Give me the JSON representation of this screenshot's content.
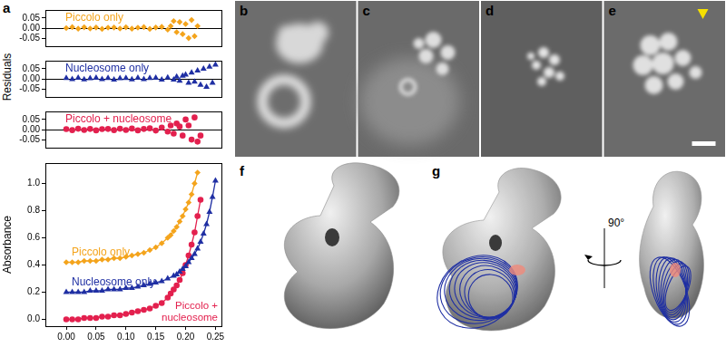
{
  "chart_data": [
    {
      "type": "scatter",
      "series": [
        {
          "name": "Piccolo only",
          "color": "#f4a41c",
          "marker": "diamond",
          "x": [
            0,
            0.01,
            0.02,
            0.03,
            0.04,
            0.05,
            0.06,
            0.07,
            0.08,
            0.09,
            0.1,
            0.11,
            0.12,
            0.13,
            0.14,
            0.15,
            0.16,
            0.17,
            0.175,
            0.18,
            0.185,
            0.19,
            0.195,
            0.2,
            0.205,
            0.21,
            0.215,
            0.22
          ],
          "values": [
            0,
            0.005,
            -0.003,
            0.004,
            -0.002,
            0.003,
            -0.004,
            0.002,
            0.003,
            -0.002,
            0.004,
            -0.003,
            0.002,
            0.005,
            -0.004,
            0.003,
            0.006,
            -0.008,
            0.01,
            0.035,
            -0.02,
            0.03,
            -0.03,
            0.02,
            -0.05,
            0.04,
            -0.04,
            0.01
          ]
        }
      ],
      "xlim": [
        -0.035,
        0.26
      ],
      "ylim": [
        -0.09,
        0.09
      ],
      "yticks": [
        -0.05,
        {
          "value": 0,
          "label": "0.00"
        },
        0.05
      ],
      "tick_labels": "y"
    },
    {
      "type": "scatter",
      "ylabel": "Residuals",
      "series": [
        {
          "name": "Nucleosome only",
          "color": "#1f2fa3",
          "marker": "triangle",
          "x": [
            0,
            0.01,
            0.02,
            0.03,
            0.04,
            0.05,
            0.06,
            0.07,
            0.08,
            0.09,
            0.1,
            0.11,
            0.12,
            0.13,
            0.14,
            0.15,
            0.16,
            0.17,
            0.18,
            0.185,
            0.19,
            0.195,
            0.2,
            0.205,
            0.21,
            0.215,
            0.22,
            0.225,
            0.23,
            0.235,
            0.24,
            0.245,
            0.25
          ],
          "values": [
            0.003,
            -0.002,
            0.004,
            -0.003,
            0.002,
            0.004,
            -0.002,
            0.003,
            -0.004,
            0.002,
            0.003,
            -0.003,
            0.004,
            -0.002,
            0.003,
            0.005,
            -0.004,
            0.006,
            -0.005,
            0.01,
            -0.01,
            0.015,
            0.02,
            -0.02,
            0.03,
            -0.015,
            0.04,
            -0.03,
            0.05,
            -0.04,
            0.06,
            -0.02,
            0.07
          ]
        }
      ],
      "xlim": [
        -0.035,
        0.26
      ],
      "ylim": [
        -0.09,
        0.09
      ],
      "yticks": [
        -0.05,
        {
          "value": 0,
          "label": "0.00"
        },
        0.05
      ],
      "tick_labels": "y"
    },
    {
      "type": "scatter",
      "series": [
        {
          "name": "Piccolo + nucleosome",
          "color": "#e3204e",
          "marker": "circle",
          "x": [
            0,
            0.01,
            0.02,
            0.03,
            0.04,
            0.05,
            0.06,
            0.07,
            0.08,
            0.09,
            0.1,
            0.11,
            0.12,
            0.13,
            0.14,
            0.15,
            0.16,
            0.17,
            0.175,
            0.18,
            0.185,
            0.19,
            0.195,
            0.2,
            0.205,
            0.21,
            0.215,
            0.22,
            0.225
          ],
          "values": [
            0.002,
            -0.003,
            0.004,
            -0.002,
            0.003,
            -0.004,
            0.002,
            0.003,
            -0.003,
            0.004,
            -0.002,
            0.005,
            -0.004,
            0.003,
            0.006,
            -0.005,
            0.01,
            -0.01,
            0.02,
            -0.02,
            0.03,
            0.015,
            -0.03,
            0.05,
            0.02,
            -0.05,
            0.06,
            -0.06,
            -0.03
          ]
        }
      ],
      "xlim": [
        -0.035,
        0.26
      ],
      "ylim": [
        -0.09,
        0.09
      ],
      "yticks": [
        -0.05,
        {
          "value": 0,
          "label": "0.00"
        },
        0.05
      ],
      "tick_labels": "y"
    },
    {
      "type": "scatter",
      "ylabel": "Absorbance",
      "series": [
        {
          "name": "Piccolo only",
          "color": "#f4a41c",
          "marker": "diamond",
          "line_style": "solid",
          "x": [
            0,
            0.01,
            0.02,
            0.03,
            0.04,
            0.05,
            0.06,
            0.07,
            0.08,
            0.09,
            0.1,
            0.11,
            0.12,
            0.13,
            0.14,
            0.15,
            0.16,
            0.17,
            0.175,
            0.18,
            0.185,
            0.19,
            0.195,
            0.2,
            0.205,
            0.21,
            0.215,
            0.22
          ],
          "values": [
            0.42,
            0.42,
            0.42,
            0.43,
            0.43,
            0.43,
            0.44,
            0.44,
            0.45,
            0.45,
            0.46,
            0.47,
            0.48,
            0.49,
            0.51,
            0.53,
            0.56,
            0.6,
            0.62,
            0.65,
            0.68,
            0.72,
            0.76,
            0.81,
            0.86,
            0.92,
            1.0,
            1.08
          ]
        },
        {
          "name": "Nucleosome only",
          "color": "#1f2fa3",
          "marker": "triangle",
          "line_style": "solid",
          "x": [
            0,
            0.01,
            0.02,
            0.03,
            0.04,
            0.05,
            0.06,
            0.07,
            0.08,
            0.09,
            0.1,
            0.11,
            0.12,
            0.13,
            0.14,
            0.15,
            0.16,
            0.17,
            0.18,
            0.185,
            0.19,
            0.195,
            0.2,
            0.205,
            0.21,
            0.215,
            0.22,
            0.225,
            0.23,
            0.235,
            0.24,
            0.245,
            0.25
          ],
          "values": [
            0.2,
            0.2,
            0.2,
            0.2,
            0.21,
            0.21,
            0.21,
            0.22,
            0.22,
            0.22,
            0.23,
            0.23,
            0.24,
            0.25,
            0.26,
            0.27,
            0.28,
            0.3,
            0.32,
            0.33,
            0.35,
            0.37,
            0.39,
            0.42,
            0.45,
            0.48,
            0.52,
            0.57,
            0.63,
            0.7,
            0.79,
            0.9,
            1.02
          ]
        },
        {
          "name": "Piccolo + nucleosome",
          "color": "#e3204e",
          "marker": "circle",
          "line_style": "solid",
          "x": [
            0,
            0.01,
            0.02,
            0.03,
            0.04,
            0.05,
            0.06,
            0.07,
            0.08,
            0.09,
            0.1,
            0.11,
            0.12,
            0.13,
            0.14,
            0.15,
            0.16,
            0.17,
            0.175,
            0.18,
            0.185,
            0.19,
            0.195,
            0.2,
            0.205,
            0.21,
            0.215,
            0.22,
            0.225
          ],
          "values": [
            0,
            0,
            0,
            0.01,
            0.01,
            0.01,
            0.02,
            0.02,
            0.03,
            0.03,
            0.04,
            0.05,
            0.06,
            0.07,
            0.08,
            0.1,
            0.12,
            0.16,
            0.19,
            0.22,
            0.25,
            0.29,
            0.34,
            0.4,
            0.47,
            0.55,
            0.64,
            0.76,
            0.88
          ]
        }
      ],
      "xlim": [
        -0.035,
        0.26
      ],
      "ylim": [
        -0.05,
        1.15
      ],
      "xticks": [
        {
          "value": 0,
          "label": "0.00"
        },
        0.05,
        {
          "value": 0.1,
          "label": "0.10"
        },
        0.15,
        {
          "value": 0.2,
          "label": "0.20"
        },
        0.25
      ],
      "yticks": [
        {
          "value": 0,
          "label": "0.0"
        },
        0.2,
        0.4,
        0.6,
        0.8,
        {
          "value": 1,
          "label": "1.0"
        }
      ]
    }
  ],
  "panel_labels": [
    "a",
    "b",
    "c",
    "d",
    "e",
    "f",
    "g"
  ],
  "rotation_label": "90°"
}
